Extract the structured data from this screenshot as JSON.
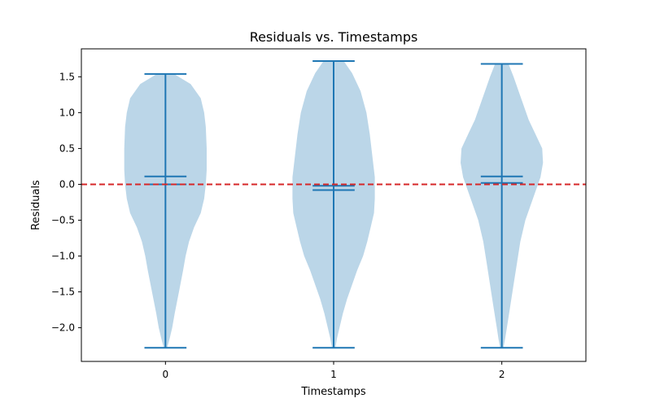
{
  "chart_data": {
    "type": "violin",
    "title": "Residuals vs. Timestamps",
    "xlabel": "Timestamps",
    "ylabel": "Residuals",
    "xlim": [
      -0.5,
      2.5
    ],
    "ylim": [
      -2.47,
      1.89
    ],
    "categories": [
      "0",
      "1",
      "2"
    ],
    "x_ticks": [
      0,
      1,
      2
    ],
    "y_ticks": [
      -2.0,
      -1.5,
      -1.0,
      -0.5,
      0.0,
      0.5,
      1.0,
      1.5
    ],
    "y_tick_labels": [
      "−2.0",
      "−1.5",
      "−1.0",
      "−0.5",
      "0.0",
      "0.5",
      "1.0",
      "1.5"
    ],
    "reference_line": {
      "y": 0.0,
      "color": "#d62728",
      "style": "dashed"
    },
    "violin_color": "#1f77b4",
    "violins": [
      {
        "position": 0,
        "min": -2.28,
        "max": 1.54,
        "mean": 0.11,
        "median": 0.0,
        "density": [
          [
            1.54,
            0.05
          ],
          [
            1.4,
            0.15
          ],
          [
            1.2,
            0.21
          ],
          [
            1.0,
            0.23
          ],
          [
            0.8,
            0.24
          ],
          [
            0.5,
            0.245
          ],
          [
            0.2,
            0.245
          ],
          [
            0.0,
            0.24
          ],
          [
            -0.2,
            0.23
          ],
          [
            -0.4,
            0.21
          ],
          [
            -0.6,
            0.17
          ],
          [
            -0.8,
            0.14
          ],
          [
            -1.0,
            0.12
          ],
          [
            -1.2,
            0.105
          ],
          [
            -1.5,
            0.08
          ],
          [
            -1.8,
            0.055
          ],
          [
            -2.0,
            0.04
          ],
          [
            -2.15,
            0.025
          ],
          [
            -2.28,
            0.01
          ]
        ]
      },
      {
        "position": 1,
        "min": -2.28,
        "max": 1.72,
        "mean": -0.08,
        "median": -0.02,
        "density": [
          [
            1.72,
            0.06
          ],
          [
            1.55,
            0.11
          ],
          [
            1.3,
            0.16
          ],
          [
            1.0,
            0.195
          ],
          [
            0.7,
            0.215
          ],
          [
            0.4,
            0.23
          ],
          [
            0.1,
            0.245
          ],
          [
            -0.2,
            0.245
          ],
          [
            -0.4,
            0.24
          ],
          [
            -0.6,
            0.22
          ],
          [
            -0.8,
            0.2
          ],
          [
            -1.0,
            0.175
          ],
          [
            -1.2,
            0.14
          ],
          [
            -1.4,
            0.11
          ],
          [
            -1.6,
            0.08
          ],
          [
            -1.8,
            0.055
          ],
          [
            -2.0,
            0.035
          ],
          [
            -2.15,
            0.02
          ],
          [
            -2.28,
            0.01
          ]
        ]
      },
      {
        "position": 2,
        "min": -2.28,
        "max": 1.68,
        "mean": 0.11,
        "median": 0.02,
        "density": [
          [
            1.68,
            0.04
          ],
          [
            1.5,
            0.07
          ],
          [
            1.3,
            0.1
          ],
          [
            1.1,
            0.13
          ],
          [
            0.9,
            0.16
          ],
          [
            0.7,
            0.2
          ],
          [
            0.5,
            0.24
          ],
          [
            0.3,
            0.245
          ],
          [
            0.1,
            0.23
          ],
          [
            -0.1,
            0.2
          ],
          [
            -0.3,
            0.17
          ],
          [
            -0.5,
            0.14
          ],
          [
            -0.8,
            0.11
          ],
          [
            -1.1,
            0.09
          ],
          [
            -1.4,
            0.07
          ],
          [
            -1.7,
            0.05
          ],
          [
            -2.0,
            0.03
          ],
          [
            -2.15,
            0.02
          ],
          [
            -2.28,
            0.01
          ]
        ]
      }
    ]
  }
}
